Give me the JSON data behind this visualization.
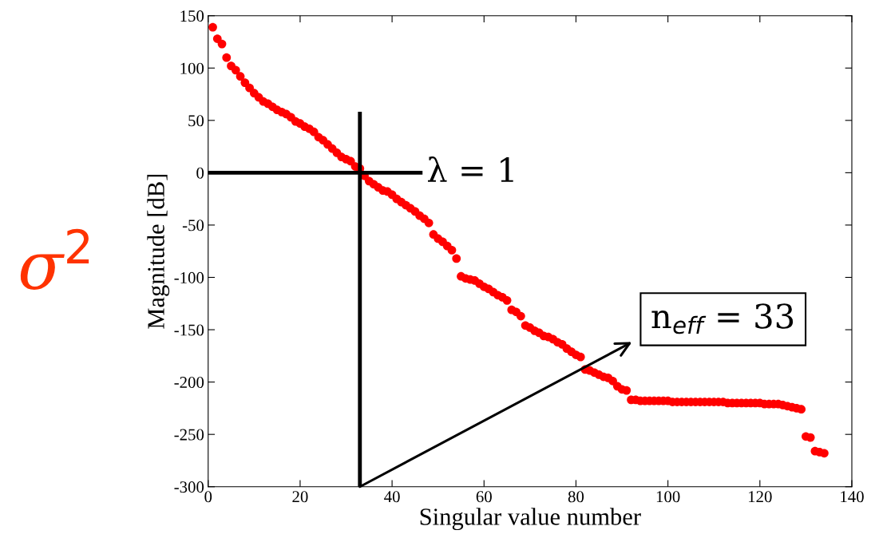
{
  "chart_data": {
    "type": "scatter",
    "xlabel": "Singular value number",
    "ylabel": "Magnitude [dB]",
    "x": [
      1,
      2,
      3,
      4,
      5,
      6,
      7,
      8,
      9,
      10,
      11,
      12,
      13,
      14,
      15,
      16,
      17,
      18,
      19,
      20,
      21,
      22,
      23,
      24,
      25,
      26,
      27,
      28,
      29,
      30,
      31,
      32,
      33,
      34,
      35,
      36,
      37,
      38,
      39,
      40,
      41,
      42,
      43,
      44,
      45,
      46,
      47,
      48,
      49,
      50,
      51,
      52,
      53,
      54,
      55,
      56,
      57,
      58,
      59,
      60,
      61,
      62,
      63,
      64,
      65,
      66,
      67,
      68,
      69,
      70,
      71,
      72,
      73,
      74,
      75,
      76,
      77,
      78,
      79,
      80,
      81,
      82,
      83,
      84,
      85,
      86,
      87,
      88,
      89,
      90,
      91,
      92,
      93,
      94,
      95,
      96,
      97,
      98,
      99,
      100,
      101,
      102,
      103,
      104,
      105,
      106,
      107,
      108,
      109,
      110,
      111,
      112,
      113,
      114,
      115,
      116,
      117,
      118,
      119,
      120,
      121,
      122,
      123,
      124,
      125,
      126,
      127,
      128,
      129,
      130,
      131,
      132,
      133,
      134
    ],
    "values": [
      139,
      128,
      123,
      110,
      102,
      98,
      92,
      86,
      81,
      76,
      72,
      68,
      66,
      63,
      60,
      58,
      56,
      53,
      49,
      47,
      44,
      42,
      39,
      34,
      31,
      27,
      23,
      19,
      15,
      13,
      11,
      6,
      4,
      -3,
      -8,
      -11,
      -14,
      -17,
      -18,
      -21,
      -25,
      -28,
      -31,
      -34,
      -37,
      -41,
      -44,
      -48,
      -59,
      -63,
      -66,
      -70,
      -74,
      -82,
      -99,
      -101,
      -102,
      -103,
      -106,
      -109,
      -111,
      -114,
      -117,
      -119,
      -122,
      -131,
      -133,
      -137,
      -146,
      -148,
      -151,
      -153,
      -156,
      -157,
      -159,
      -162,
      -164,
      -168,
      -171,
      -174,
      -176,
      -188,
      -189,
      -191,
      -193,
      -195,
      -196,
      -199,
      -204,
      -207,
      -208,
      -217,
      -217,
      -218,
      -218,
      -218,
      -218,
      -218,
      -218,
      -218,
      -219,
      -219,
      -219,
      -219,
      -219,
      -219,
      -219,
      -219,
      -219,
      -219,
      -219,
      -219,
      -220,
      -220,
      -220,
      -220,
      -220,
      -220,
      -220,
      -220,
      -221,
      -221,
      -221,
      -221,
      -222,
      -223,
      -224,
      -225,
      -226,
      -252,
      -253,
      -266,
      -267,
      -268
    ],
    "color": "#ff0000",
    "marker": "circle",
    "grid": false,
    "xlim": [
      0,
      140
    ],
    "xticks": [
      0,
      20,
      40,
      60,
      80,
      100,
      120,
      140
    ],
    "ylim": [
      -300,
      150
    ],
    "yticks": [
      -300,
      -250,
      -200,
      -150,
      -100,
      -50,
      0,
      50,
      100,
      150
    ],
    "ref_lines": [
      {
        "axis": "y",
        "value": 0,
        "color": "#000000"
      },
      {
        "axis": "x",
        "value": 33,
        "color": "#000000"
      }
    ],
    "annotations": [
      {
        "text": "n$_{eff}$ = 33",
        "x": 33,
        "y": -300
      },
      "σ$^{2}$",
      "λ = 1"
    ]
  }
}
